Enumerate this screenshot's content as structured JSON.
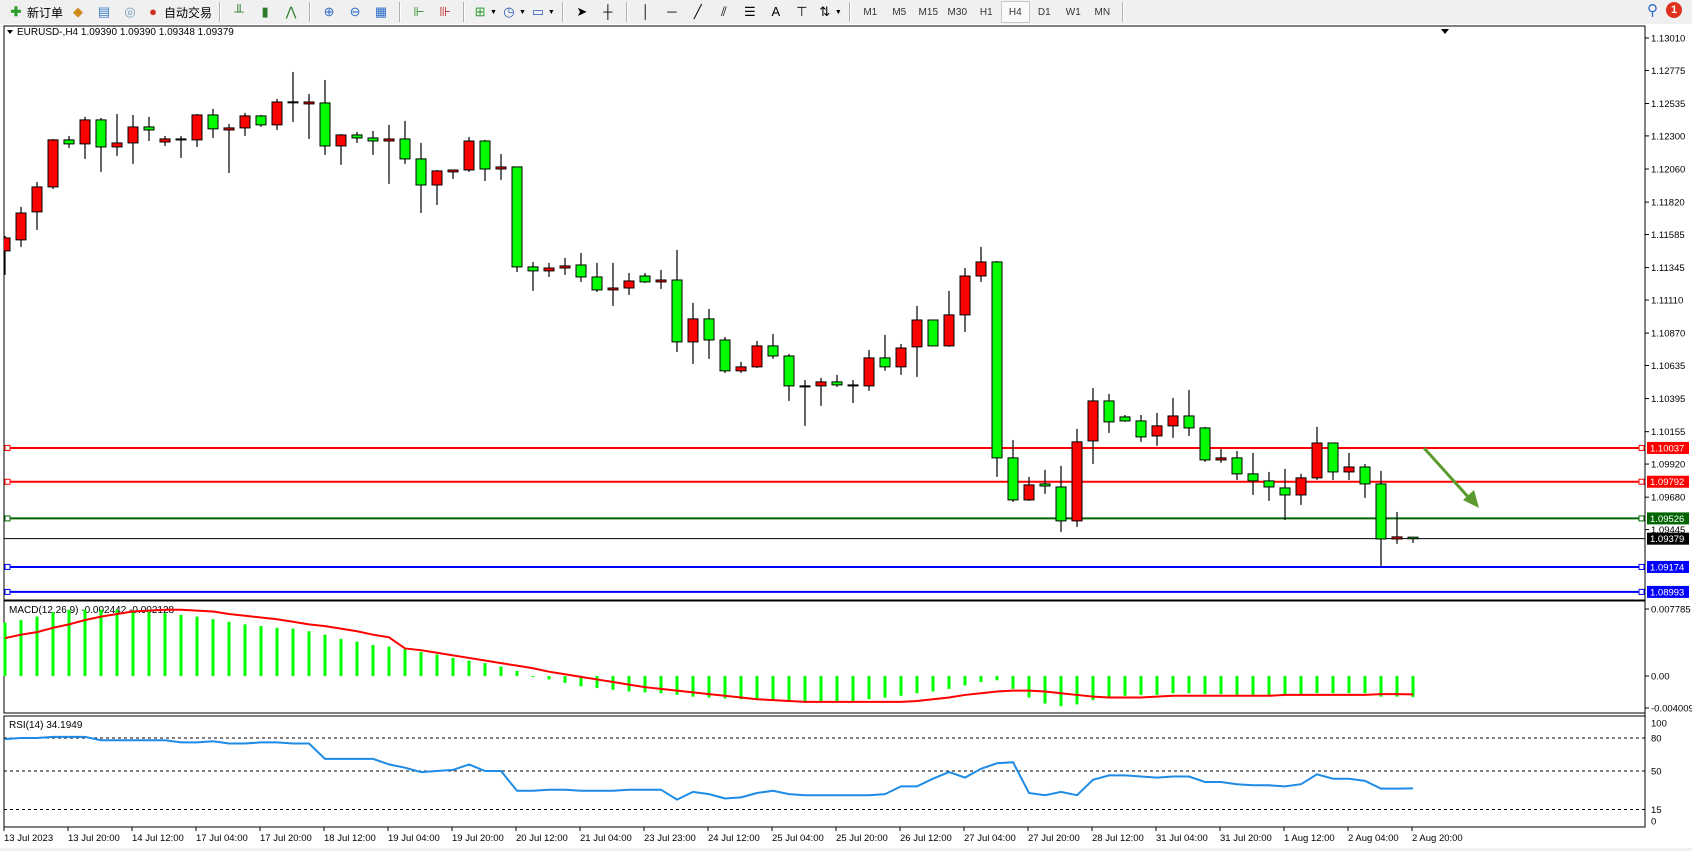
{
  "toolbar": {
    "new_order_label": "新订单",
    "auto_trading_label": "自动交易",
    "icons": [
      "new-order-icon",
      "history-icon",
      "terminal-icon",
      "signals-icon",
      "auto-trading-icon",
      "bar-chart-icon",
      "candlestick-icon",
      "line-chart-icon",
      "zoom-in-icon",
      "zoom-out-icon",
      "tile-windows-icon",
      "autoscroll-icon",
      "chart-shift-icon",
      "indicators-icon",
      "periods-icon",
      "templates-icon",
      "cursor-icon",
      "crosshair-icon",
      "vertical-line-icon",
      "horizontal-line-icon",
      "trendline-icon",
      "channel-icon",
      "fibonacci-icon",
      "text-icon",
      "text-label-icon",
      "arrows-icon"
    ],
    "text_tool": "A",
    "timeframes": [
      "M1",
      "M5",
      "M15",
      "M30",
      "H1",
      "H4",
      "D1",
      "W1",
      "MN"
    ],
    "active_timeframe": "H4",
    "notification_count": "1"
  },
  "chart": {
    "title": "EURUSD-,H4  1.09390 1.09390 1.09348 1.09379",
    "macd_label": "MACD(12,26,9) -0.002442 -0.002128",
    "rsi_label": "RSI(14) 34.1949",
    "colors": {
      "bull": "#ff0000",
      "bear": "#00ff00",
      "macd_hist": "#00ff00",
      "macd_signal": "#ff0000",
      "rsi": "#1e8ce6",
      "arrow": "#5b9b2d"
    }
  },
  "chart_data": {
    "type": "candlestick",
    "symbol": "EURUSD-",
    "timeframe": "H4",
    "ylim": [
      1.08993,
      1.1301
    ],
    "price_ticks": [
      "1.13010",
      "1.12775",
      "1.12535",
      "1.12300",
      "1.12060",
      "1.11820",
      "1.11585",
      "1.11345",
      "1.11110",
      "1.10870",
      "1.10635",
      "1.10395",
      "1.10155",
      "1.09920",
      "1.09680",
      "1.09445"
    ],
    "time_labels": [
      "13 Jul 2023",
      "13 Jul 20:00",
      "14 Jul 12:00",
      "17 Jul 04:00",
      "17 Jul 20:00",
      "18 Jul 12:00",
      "19 Jul 04:00",
      "19 Jul 20:00",
      "20 Jul 12:00",
      "21 Jul 04:00",
      "23 Jul 23:00",
      "24 Jul 12:00",
      "25 Jul 04:00",
      "25 Jul 20:00",
      "26 Jul 12:00",
      "27 Jul 04:00",
      "27 Jul 20:00",
      "28 Jul 12:00",
      "31 Jul 04:00",
      "31 Jul 20:00",
      "1 Aug 12:00",
      "2 Aug 04:00",
      "2 Aug 20:00"
    ],
    "levels": [
      {
        "value": 1.10037,
        "label": "1.10037",
        "color": "#ff0000"
      },
      {
        "value": 1.09792,
        "label": "1.09792",
        "color": "#ff0000"
      },
      {
        "value": 1.09526,
        "label": "1.09526",
        "color": "#006400"
      },
      {
        "value": 1.09379,
        "label": "1.09379",
        "color": "#000000",
        "current": true
      },
      {
        "value": 1.09174,
        "label": "1.09174",
        "color": "#0000ff"
      },
      {
        "value": 1.08993,
        "label": "1.08993",
        "color": "#0000ff"
      }
    ],
    "ohlc": [
      [
        1.11466,
        1.11575,
        1.11292,
        1.1156
      ],
      [
        1.11546,
        1.11785,
        1.11495,
        1.11741
      ],
      [
        1.11749,
        1.11966,
        1.11618,
        1.1193
      ],
      [
        1.1193,
        1.12278,
        1.11915,
        1.12271
      ],
      [
        1.12271,
        1.123,
        1.12213,
        1.12242
      ],
      [
        1.12242,
        1.12438,
        1.12133,
        1.12416
      ],
      [
        1.12416,
        1.1243,
        1.12039,
        1.1222
      ],
      [
        1.1222,
        1.12459,
        1.12155,
        1.12249
      ],
      [
        1.12249,
        1.12452,
        1.12097,
        1.12365
      ],
      [
        1.12365,
        1.12438,
        1.12263,
        1.12343
      ],
      [
        1.12256,
        1.123,
        1.12227,
        1.12278
      ],
      [
        1.12271,
        1.123,
        1.1214,
        1.12278
      ],
      [
        1.12271,
        1.12459,
        1.1222,
        1.12452
      ],
      [
        1.12452,
        1.12496,
        1.12285,
        1.12351
      ],
      [
        1.12343,
        1.12387,
        1.12031,
        1.12358
      ],
      [
        1.12358,
        1.12467,
        1.123,
        1.12445
      ],
      [
        1.12445,
        1.12452,
        1.12365,
        1.1238
      ],
      [
        1.1238,
        1.12568,
        1.12343,
        1.12546
      ],
      [
        1.12546,
        1.12764,
        1.12401,
        1.12547
      ],
      [
        1.12532,
        1.12604,
        1.12278,
        1.12546
      ],
      [
        1.12539,
        1.12706,
        1.12162,
        1.12227
      ],
      [
        1.12227,
        1.12314,
        1.1209,
        1.12307
      ],
      [
        1.12307,
        1.12329,
        1.12249,
        1.12285
      ],
      [
        1.12285,
        1.12336,
        1.12162,
        1.12263
      ],
      [
        1.12263,
        1.1238,
        1.11952,
        1.12278
      ],
      [
        1.12278,
        1.12409,
        1.12097,
        1.12133
      ],
      [
        1.12133,
        1.12249,
        1.11741,
        1.11944
      ],
      [
        1.11944,
        1.12053,
        1.11799,
        1.12046
      ],
      [
        1.12039,
        1.12053,
        1.11988,
        1.12053
      ],
      [
        1.12053,
        1.12293,
        1.12039,
        1.12263
      ],
      [
        1.12263,
        1.12271,
        1.11973,
        1.1206
      ],
      [
        1.1206,
        1.12169,
        1.11981,
        1.12075
      ],
      [
        1.12075,
        1.12075,
        1.11313,
        1.1135
      ],
      [
        1.1135,
        1.11386,
        1.11176,
        1.11321
      ],
      [
        1.11321,
        1.11379,
        1.11277,
        1.11342
      ],
      [
        1.11342,
        1.11415,
        1.11292,
        1.11357
      ],
      [
        1.11364,
        1.11451,
        1.11241,
        1.11277
      ],
      [
        1.11277,
        1.11379,
        1.11168,
        1.11183
      ],
      [
        1.11183,
        1.11379,
        1.11067,
        1.11197
      ],
      [
        1.11197,
        1.11306,
        1.11147,
        1.11248
      ],
      [
        1.11284,
        1.11306,
        1.11234,
        1.11241
      ],
      [
        1.11241,
        1.11328,
        1.1119,
        1.11255
      ],
      [
        1.11255,
        1.11473,
        1.10733,
        1.10806
      ],
      [
        1.10806,
        1.11089,
        1.10646,
        1.10973
      ],
      [
        1.10973,
        1.11045,
        1.10683,
        1.1082
      ],
      [
        1.1082,
        1.10842,
        1.10581,
        1.10596
      ],
      [
        1.10596,
        1.10661,
        1.10581,
        1.10625
      ],
      [
        1.10625,
        1.10813,
        1.10617,
        1.10777
      ],
      [
        1.10777,
        1.10864,
        1.10683,
        1.10704
      ],
      [
        1.10704,
        1.10719,
        1.10378,
        1.10487
      ],
      [
        1.10487,
        1.1053,
        1.10197,
        1.10487
      ],
      [
        1.10487,
        1.10545,
        1.10342,
        1.10516
      ],
      [
        1.10516,
        1.10567,
        1.1048,
        1.10494
      ],
      [
        1.10494,
        1.1053,
        1.10363,
        1.10494
      ],
      [
        1.10487,
        1.10748,
        1.10451,
        1.1069
      ],
      [
        1.1069,
        1.10857,
        1.10596,
        1.10625
      ],
      [
        1.10625,
        1.10791,
        1.10567,
        1.10762
      ],
      [
        1.1077,
        1.11067,
        1.10552,
        1.10965
      ],
      [
        1.10965,
        1.10965,
        1.10777,
        1.10777
      ],
      [
        1.10777,
        1.11176,
        1.1077,
        1.11002
      ],
      [
        1.11002,
        1.11342,
        1.10878,
        1.11284
      ],
      [
        1.11284,
        1.11495,
        1.11241,
        1.11386
      ],
      [
        1.11386,
        1.11393,
        1.09827,
        1.09965
      ],
      [
        1.09965,
        1.10095,
        1.09645,
        1.0966
      ],
      [
        1.0966,
        1.09827,
        1.09653,
        1.09769
      ],
      [
        1.09776,
        1.09878,
        1.09704,
        1.09761
      ],
      [
        1.09754,
        1.09907,
        1.09428,
        1.09508
      ],
      [
        1.09508,
        1.10175,
        1.09464,
        1.10081
      ],
      [
        1.10088,
        1.10472,
        1.09921,
        1.10378
      ],
      [
        1.10378,
        1.10429,
        1.10146,
        1.10226
      ],
      [
        1.10262,
        1.10276,
        1.10226,
        1.10233
      ],
      [
        1.10233,
        1.10276,
        1.10081,
        1.10117
      ],
      [
        1.10124,
        1.10291,
        1.10052,
        1.10197
      ],
      [
        1.10197,
        1.104,
        1.1011,
        1.10269
      ],
      [
        1.10269,
        1.10458,
        1.10124,
        1.10182
      ],
      [
        1.10182,
        1.1019,
        1.09936,
        1.0995
      ],
      [
        1.0995,
        1.1003,
        1.09929,
        1.09965
      ],
      [
        1.09965,
        1.10015,
        1.09805,
        1.09849
      ],
      [
        1.09849,
        1.10001,
        1.09696,
        1.09798
      ],
      [
        1.09798,
        1.09863,
        1.09653,
        1.09754
      ],
      [
        1.09747,
        1.09885,
        1.09515,
        1.09696
      ],
      [
        1.09696,
        1.09849,
        1.09624,
        1.0982
      ],
      [
        1.0982,
        1.1019,
        1.09805,
        1.10073
      ],
      [
        1.10073,
        1.10073,
        1.09805,
        1.09863
      ],
      [
        1.09863,
        1.10001,
        1.09805,
        1.09899
      ],
      [
        1.09899,
        1.09921,
        1.09675,
        1.09776
      ],
      [
        1.09776,
        1.0987,
        1.09181,
        1.09377
      ],
      [
        1.09377,
        1.09573,
        1.09341,
        1.09392
      ],
      [
        1.0939,
        1.0939,
        1.09348,
        1.09379
      ]
    ],
    "macd": {
      "params": "12,26,9",
      "ylim": [
        -0.004009,
        0.007785
      ],
      "ticks": [
        "0.007785",
        "0.00",
        "-0.004009"
      ],
      "histogram": [
        0.0062,
        0.0065,
        0.0069,
        0.0074,
        0.0077,
        0.0077,
        0.0077,
        0.0077,
        0.0075,
        0.0074,
        0.0073,
        0.0071,
        0.0069,
        0.0066,
        0.0063,
        0.006,
        0.0058,
        0.0056,
        0.0055,
        0.0052,
        0.0048,
        0.0043,
        0.004,
        0.0036,
        0.0034,
        0.0031,
        0.0028,
        0.0025,
        0.0021,
        0.0018,
        0.0015,
        0.0011,
        0.0006,
        -0.0001,
        -0.0004,
        -0.0008,
        -0.0012,
        -0.0014,
        -0.0016,
        -0.0018,
        -0.0019,
        -0.002,
        -0.0022,
        -0.0024,
        -0.0025,
        -0.0026,
        -0.0027,
        -0.0028,
        -0.0029,
        -0.003,
        -0.0031,
        -0.003,
        -0.003,
        -0.0029,
        -0.0027,
        -0.0025,
        -0.0023,
        -0.002,
        -0.0018,
        -0.0015,
        -0.0011,
        -0.0007,
        -0.0005,
        -0.0015,
        -0.0025,
        -0.0032,
        -0.0035,
        -0.0033,
        -0.0028,
        -0.0025,
        -0.0023,
        -0.0022,
        -0.0022,
        -0.002,
        -0.002,
        -0.0021,
        -0.0021,
        -0.0022,
        -0.0022,
        -0.0023,
        -0.0023,
        -0.0022,
        -0.002,
        -0.002,
        -0.002,
        -0.002,
        -0.0024,
        -0.0024,
        -0.002442
      ],
      "signal": [
        0.0044,
        0.0048,
        0.0051,
        0.0056,
        0.006,
        0.0065,
        0.0069,
        0.0072,
        0.0075,
        0.0076,
        0.0077,
        0.0077,
        0.0076,
        0.0075,
        0.0072,
        0.007,
        0.0068,
        0.0066,
        0.0063,
        0.006,
        0.0058,
        0.0055,
        0.0052,
        0.0048,
        0.0045,
        0.0032,
        0.003,
        0.0027,
        0.0024,
        0.0021,
        0.0018,
        0.0015,
        0.0012,
        0.0009,
        0.0005,
        0.0002,
        -0.0001,
        -0.0004,
        -0.0007,
        -0.001,
        -0.0013,
        -0.0015,
        -0.0017,
        -0.0019,
        -0.0021,
        -0.0023,
        -0.0025,
        -0.0027,
        -0.0028,
        -0.0029,
        -0.003,
        -0.003,
        -0.003,
        -0.003,
        -0.003,
        -0.003,
        -0.003,
        -0.0029,
        -0.0027,
        -0.0025,
        -0.0022,
        -0.002,
        -0.0018,
        -0.0017,
        -0.0017,
        -0.0018,
        -0.002,
        -0.0022,
        -0.0024,
        -0.0025,
        -0.0025,
        -0.0025,
        -0.0024,
        -0.0023,
        -0.0023,
        -0.0023,
        -0.0023,
        -0.0023,
        -0.0023,
        -0.0023,
        -0.0022,
        -0.0022,
        -0.0022,
        -0.0022,
        -0.0022,
        -0.0022,
        -0.0021,
        -0.0021,
        -0.002128
      ]
    },
    "rsi": {
      "period": 14,
      "ylim": [
        0,
        100
      ],
      "ticks": [
        "100",
        "80",
        "50",
        "15",
        "0"
      ],
      "levels": [
        80,
        50,
        15
      ],
      "values": [
        79,
        80,
        80,
        81,
        81,
        81,
        78,
        78,
        78,
        78,
        78,
        76,
        76,
        77,
        75,
        75,
        76,
        76,
        75,
        75,
        61,
        61,
        61,
        61,
        56,
        53,
        49,
        50,
        51,
        56,
        50,
        50,
        32,
        32,
        33,
        33,
        32,
        32,
        32,
        33,
        33,
        33,
        24,
        31,
        29,
        25,
        26,
        30,
        32,
        29,
        28,
        28,
        28,
        28,
        28,
        29,
        36,
        36,
        43,
        49,
        44,
        52,
        57,
        58,
        30,
        28,
        31,
        28,
        42,
        46,
        46,
        45,
        44,
        45,
        45,
        40,
        40,
        38,
        37,
        37,
        36,
        38,
        47,
        43,
        43,
        41,
        34,
        34,
        34.1949
      ]
    }
  }
}
